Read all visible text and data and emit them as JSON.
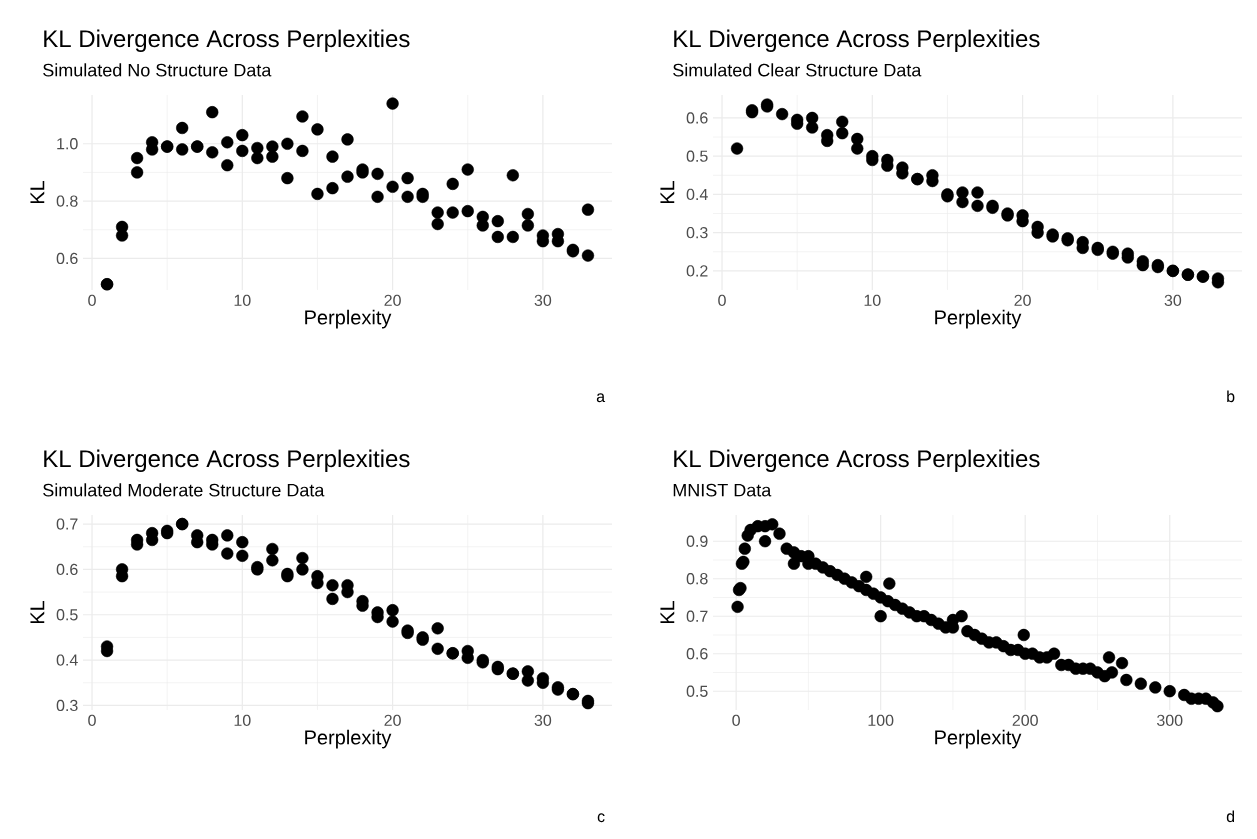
{
  "chart_data": [
    {
      "type": "scatter",
      "title": "KL Divergence Across Perplexities",
      "subtitle": "Simulated No Structure Data",
      "xlabel": "Perplexity",
      "ylabel": "KL",
      "annotations": [
        "a"
      ],
      "color": "#000000",
      "marker": "circle",
      "grid": true,
      "xlim": [
        -0.6,
        34.6
      ],
      "ylim": [
        0.49,
        1.17
      ],
      "xticks": [
        0,
        10,
        20,
        30
      ],
      "yticks": [
        0.6,
        0.8,
        {
          "value": 1,
          "label": "1.0"
        }
      ],
      "x": [
        1,
        1,
        2,
        2,
        3,
        3,
        4,
        4,
        5,
        5,
        6,
        6,
        7,
        7,
        8,
        8,
        9,
        9,
        10,
        10,
        11,
        11,
        12,
        12,
        13,
        13,
        14,
        14,
        15,
        15,
        16,
        16,
        17,
        17,
        18,
        18,
        19,
        19,
        20,
        20,
        21,
        21,
        22,
        22,
        23,
        23,
        24,
        24,
        25,
        25,
        26,
        26,
        27,
        27,
        28,
        28,
        29,
        29,
        30,
        30,
        31,
        31,
        32,
        32,
        33,
        33
      ],
      "values": [
        0.51,
        0.51,
        0.71,
        0.68,
        0.95,
        0.9,
        1.005,
        0.98,
        0.99,
        0.99,
        1.055,
        0.98,
        0.99,
        0.99,
        1.11,
        0.97,
        1.005,
        0.925,
        1.03,
        0.975,
        0.985,
        0.95,
        0.99,
        0.955,
        1.0,
        0.88,
        1.095,
        0.975,
        1.05,
        0.825,
        0.955,
        0.845,
        1.015,
        0.885,
        0.91,
        0.9,
        0.895,
        0.815,
        1.14,
        0.85,
        0.88,
        0.815,
        0.825,
        0.815,
        0.76,
        0.72,
        0.86,
        0.76,
        0.91,
        0.765,
        0.745,
        0.715,
        0.73,
        0.675,
        0.89,
        0.675,
        0.755,
        0.715,
        0.68,
        0.66,
        0.685,
        0.66,
        0.63,
        0.625,
        0.77,
        0.61
      ]
    },
    {
      "type": "scatter",
      "title": "KL Divergence Across Perplexities",
      "subtitle": "Simulated Clear Structure Data",
      "xlabel": "Perplexity",
      "ylabel": "KL",
      "annotations": [
        "b"
      ],
      "color": "#000000",
      "marker": "circle",
      "grid": true,
      "xlim": [
        -0.6,
        34.6
      ],
      "ylim": [
        0.15,
        0.66
      ],
      "xticks": [
        0,
        10,
        20,
        30
      ],
      "yticks": [
        0.2,
        0.3,
        0.4,
        0.5,
        0.6
      ],
      "x": [
        1,
        2,
        2,
        3,
        3,
        4,
        5,
        5,
        6,
        6,
        7,
        7,
        8,
        8,
        9,
        9,
        10,
        10,
        11,
        11,
        12,
        12,
        13,
        13,
        14,
        14,
        15,
        15,
        16,
        16,
        17,
        17,
        18,
        18,
        19,
        19,
        20,
        20,
        21,
        21,
        22,
        22,
        23,
        23,
        24,
        24,
        25,
        25,
        26,
        26,
        27,
        27,
        28,
        28,
        29,
        29,
        30,
        30,
        31,
        31,
        32,
        32,
        33,
        33
      ],
      "values": [
        0.52,
        0.62,
        0.615,
        0.635,
        0.63,
        0.61,
        0.595,
        0.585,
        0.6,
        0.575,
        0.555,
        0.54,
        0.59,
        0.56,
        0.545,
        0.52,
        0.5,
        0.49,
        0.49,
        0.475,
        0.47,
        0.455,
        0.44,
        0.44,
        0.45,
        0.435,
        0.4,
        0.395,
        0.405,
        0.38,
        0.405,
        0.37,
        0.37,
        0.365,
        0.35,
        0.345,
        0.345,
        0.33,
        0.315,
        0.3,
        0.295,
        0.29,
        0.285,
        0.28,
        0.275,
        0.26,
        0.26,
        0.255,
        0.25,
        0.245,
        0.245,
        0.235,
        0.225,
        0.215,
        0.215,
        0.21,
        0.2,
        0.2,
        0.19,
        0.19,
        0.185,
        0.185,
        0.18,
        0.17
      ]
    },
    {
      "type": "scatter",
      "title": "KL Divergence Across Perplexities",
      "subtitle": "Simulated Moderate Structure Data",
      "xlabel": "Perplexity",
      "ylabel": "KL",
      "annotations": [
        "c"
      ],
      "color": "#000000",
      "marker": "circle",
      "grid": true,
      "xlim": [
        -0.6,
        34.6
      ],
      "ylim": [
        0.29,
        0.72
      ],
      "xticks": [
        0,
        10,
        20,
        30
      ],
      "yticks": [
        0.3,
        0.4,
        0.5,
        0.6,
        0.7
      ],
      "x": [
        1,
        1,
        2,
        2,
        3,
        3,
        4,
        4,
        5,
        5,
        6,
        6,
        7,
        7,
        8,
        8,
        9,
        9,
        10,
        10,
        11,
        11,
        12,
        12,
        13,
        13,
        14,
        14,
        15,
        15,
        16,
        16,
        17,
        17,
        18,
        18,
        19,
        19,
        20,
        20,
        21,
        21,
        22,
        22,
        23,
        23,
        24,
        24,
        25,
        25,
        26,
        26,
        27,
        27,
        28,
        28,
        29,
        29,
        30,
        30,
        31,
        31,
        32,
        32,
        33,
        33
      ],
      "values": [
        0.43,
        0.42,
        0.6,
        0.585,
        0.665,
        0.655,
        0.68,
        0.665,
        0.685,
        0.68,
        0.7,
        0.7,
        0.675,
        0.66,
        0.665,
        0.655,
        0.675,
        0.635,
        0.66,
        0.63,
        0.605,
        0.6,
        0.645,
        0.62,
        0.59,
        0.585,
        0.625,
        0.6,
        0.585,
        0.57,
        0.565,
        0.535,
        0.565,
        0.55,
        0.53,
        0.52,
        0.505,
        0.495,
        0.51,
        0.485,
        0.465,
        0.46,
        0.45,
        0.445,
        0.47,
        0.425,
        0.415,
        0.415,
        0.42,
        0.405,
        0.4,
        0.395,
        0.385,
        0.38,
        0.37,
        0.37,
        0.375,
        0.355,
        0.36,
        0.35,
        0.34,
        0.335,
        0.325,
        0.325,
        0.31,
        0.305
      ]
    },
    {
      "type": "scatter",
      "title": "KL Divergence Across Perplexities",
      "subtitle": "MNIST Data",
      "xlabel": "Perplexity",
      "ylabel": "KL",
      "annotations": [
        "d"
      ],
      "color": "#000000",
      "marker": "circle",
      "grid": true,
      "xlim": [
        -16,
        350
      ],
      "ylim": [
        0.45,
        0.97
      ],
      "xticks": [
        0,
        100,
        200,
        300
      ],
      "yticks": [
        0.5,
        0.6,
        0.7,
        0.8,
        0.9
      ],
      "x": [
        1,
        2,
        3,
        4,
        5,
        6,
        8,
        10,
        15,
        20,
        20,
        25,
        30,
        35,
        40,
        40,
        45,
        50,
        50,
        55,
        60,
        65,
        70,
        75,
        80,
        85,
        90,
        90,
        95,
        100,
        100,
        105,
        106,
        110,
        115,
        120,
        125,
        130,
        135,
        140,
        145,
        150,
        150,
        156,
        160,
        165,
        170,
        175,
        180,
        185,
        190,
        195,
        199,
        200,
        205,
        210,
        215,
        220,
        225,
        230,
        235,
        240,
        245,
        250,
        255,
        258,
        260,
        267,
        270,
        280,
        290,
        300,
        310,
        315,
        320,
        325,
        330,
        333
      ],
      "values": [
        0.725,
        0.77,
        0.775,
        0.84,
        0.845,
        0.88,
        0.915,
        0.93,
        0.94,
        0.94,
        0.9,
        0.945,
        0.92,
        0.88,
        0.87,
        0.84,
        0.86,
        0.86,
        0.84,
        0.84,
        0.83,
        0.82,
        0.81,
        0.8,
        0.79,
        0.78,
        0.805,
        0.77,
        0.76,
        0.75,
        0.7,
        0.74,
        0.787,
        0.73,
        0.72,
        0.71,
        0.7,
        0.7,
        0.69,
        0.68,
        0.67,
        0.67,
        0.69,
        0.7,
        0.66,
        0.65,
        0.64,
        0.63,
        0.63,
        0.62,
        0.61,
        0.61,
        0.65,
        0.6,
        0.6,
        0.59,
        0.59,
        0.6,
        0.57,
        0.57,
        0.56,
        0.56,
        0.56,
        0.55,
        0.54,
        0.59,
        0.55,
        0.575,
        0.53,
        0.52,
        0.51,
        0.5,
        0.49,
        0.48,
        0.48,
        0.48,
        0.47,
        0.46
      ]
    }
  ]
}
